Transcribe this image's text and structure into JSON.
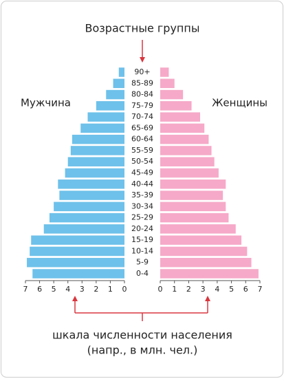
{
  "chart_data": {
    "type": "bar",
    "title": "Возрастные группы",
    "x_label": [
      "шкала численности населения",
      "(напр., в млн. чел.)"
    ],
    "categories": [
      "90+",
      "85-89",
      "80-84",
      "75-79",
      "70-74",
      "65-69",
      "60-64",
      "55-59",
      "50-54",
      "45-49",
      "40-44",
      "35-39",
      "30-34",
      "25-29",
      "20-24",
      "15-19",
      "10-14",
      "5-9",
      "0-4"
    ],
    "series": [
      {
        "name": "Мужчина",
        "color": "#6ec1ea",
        "values": [
          0.4,
          0.8,
          1.3,
          2.0,
          2.6,
          3.1,
          3.7,
          3.8,
          4.0,
          4.2,
          4.7,
          4.6,
          5.0,
          5.3,
          5.7,
          6.6,
          6.7,
          6.9,
          6.5
        ]
      },
      {
        "name": "Женщины",
        "color": "#f6a9c8",
        "values": [
          0.6,
          1.0,
          1.6,
          2.2,
          2.8,
          3.1,
          3.4,
          3.6,
          3.8,
          4.1,
          4.6,
          4.4,
          4.6,
          4.8,
          5.3,
          5.7,
          6.1,
          6.4,
          6.9
        ]
      }
    ],
    "xlim": [
      0,
      7
    ],
    "xticks": [
      0,
      1,
      2,
      3,
      4,
      5,
      6,
      7
    ]
  }
}
